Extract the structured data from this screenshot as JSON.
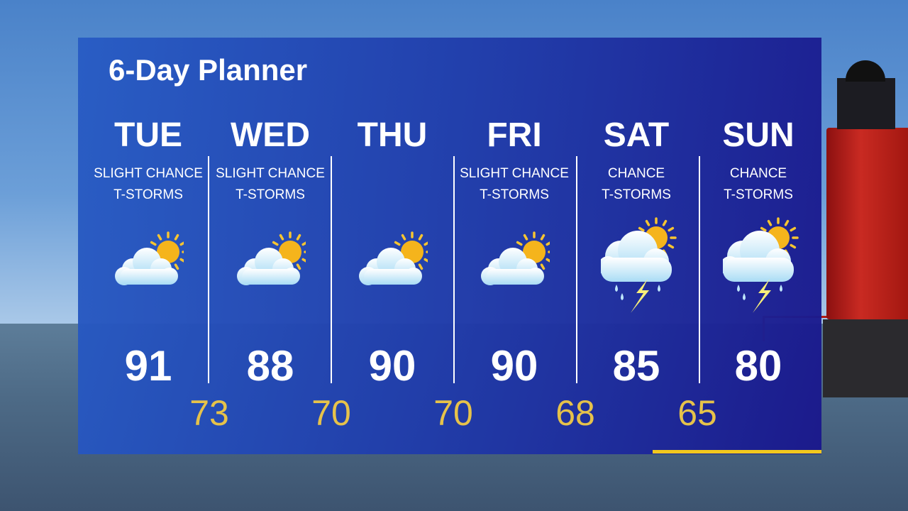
{
  "title": "6-Day Planner",
  "colors": {
    "low_temp": "#e6c24a",
    "accent_bar": "#f2c81d"
  },
  "days": [
    {
      "day": "TUE",
      "cond1": "SLIGHT CHANCE",
      "cond2": "T-STORMS",
      "icon": "partly-cloudy-icon",
      "high": "91"
    },
    {
      "day": "WED",
      "cond1": "SLIGHT CHANCE",
      "cond2": "T-STORMS",
      "icon": "partly-cloudy-icon",
      "high": "88"
    },
    {
      "day": "THU",
      "cond1": "",
      "cond2": "",
      "icon": "partly-cloudy-icon",
      "high": "90"
    },
    {
      "day": "FRI",
      "cond1": "SLIGHT CHANCE",
      "cond2": "T-STORMS",
      "icon": "partly-cloudy-icon",
      "high": "90"
    },
    {
      "day": "SAT",
      "cond1": "CHANCE",
      "cond2": "T-STORMS",
      "icon": "thunderstorm-sun-icon",
      "high": "85"
    },
    {
      "day": "SUN",
      "cond1": "CHANCE",
      "cond2": "T-STORMS",
      "icon": "thunderstorm-sun-icon",
      "high": "80"
    }
  ],
  "lows": [
    "73",
    "70",
    "70",
    "68",
    "65"
  ]
}
